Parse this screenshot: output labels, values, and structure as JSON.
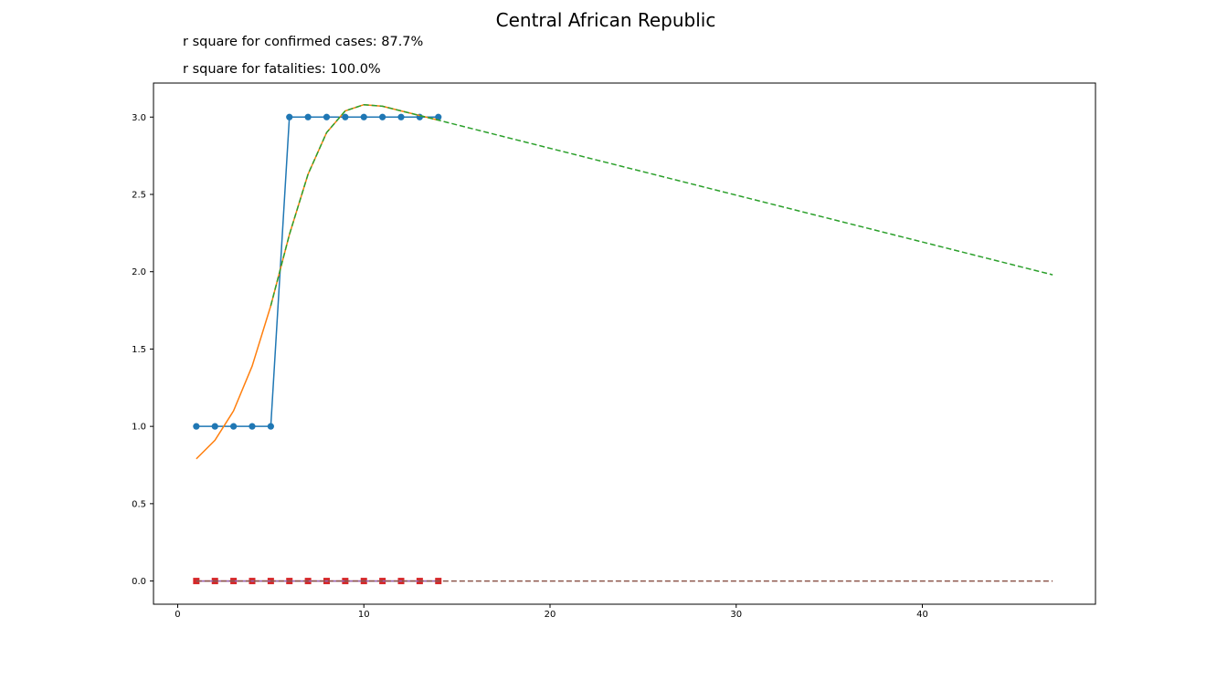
{
  "chart_data": {
    "type": "line",
    "title": "Central African Republic",
    "annotations": [
      "r square for confirmed cases: 87.7%",
      "r square for fatalities: 100.0%"
    ],
    "xlabel": "",
    "ylabel": "",
    "xlim": [
      -1.3,
      49.3
    ],
    "ylim": [
      -0.15,
      3.22
    ],
    "xticks": [
      0,
      10,
      20,
      30,
      40
    ],
    "yticks": [
      0.0,
      0.5,
      1.0,
      1.5,
      2.0,
      2.5,
      3.0
    ],
    "grid": false,
    "legend": "none",
    "series": [
      {
        "style": "line-circle",
        "color": "#1f77b4",
        "x": [
          1,
          2,
          3,
          4,
          5,
          6,
          7,
          8,
          9,
          10,
          11,
          12,
          13,
          14
        ],
        "y": [
          1,
          1,
          1,
          1,
          1,
          3,
          3,
          3,
          3,
          3,
          3,
          3,
          3,
          3
        ]
      },
      {
        "style": "line",
        "color": "#ff7f0e",
        "x": [
          1,
          2,
          3,
          4,
          5,
          6,
          7,
          8,
          9,
          10,
          11,
          12,
          13,
          14
        ],
        "y": [
          0.79,
          0.91,
          1.1,
          1.39,
          1.78,
          2.24,
          2.63,
          2.9,
          3.04,
          3.08,
          3.07,
          3.04,
          3.01,
          2.98
        ]
      },
      {
        "style": "dashed",
        "color": "#2ca02c",
        "x": [
          5,
          6,
          7,
          8,
          9,
          10,
          11,
          12,
          13,
          14,
          47
        ],
        "y": [
          1.78,
          2.24,
          2.63,
          2.9,
          3.04,
          3.08,
          3.07,
          3.04,
          3.01,
          2.98,
          1.98
        ]
      },
      {
        "style": "line-square",
        "color": "#d62728",
        "x": [
          1,
          2,
          3,
          4,
          5,
          6,
          7,
          8,
          9,
          10,
          11,
          12,
          13,
          14
        ],
        "y": [
          0,
          0,
          0,
          0,
          0,
          0,
          0,
          0,
          0,
          0,
          0,
          0,
          0,
          0
        ]
      },
      {
        "style": "line",
        "color": "#9467bd",
        "x": [
          1,
          14
        ],
        "y": [
          0,
          0
        ]
      },
      {
        "style": "dashed",
        "color": "#8c564b",
        "x": [
          1,
          47
        ],
        "y": [
          0,
          0
        ]
      }
    ]
  }
}
